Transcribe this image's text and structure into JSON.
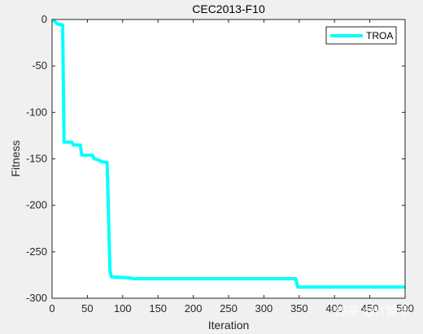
{
  "chart_data": {
    "type": "line",
    "title": "CEC2013-F10",
    "xlabel": "Iteration",
    "ylabel": "Fitness",
    "xlim": [
      0,
      500
    ],
    "ylim": [
      -300,
      0
    ],
    "xticks": [
      0,
      50,
      100,
      150,
      200,
      250,
      300,
      350,
      400,
      450,
      500
    ],
    "yticks": [
      0,
      -50,
      -100,
      -150,
      -200,
      -250,
      -300
    ],
    "grid": false,
    "legend_position": "top-right",
    "series": [
      {
        "name": "TROA",
        "color": "#00ffff",
        "x": [
          1,
          5,
          8,
          15,
          17,
          28,
          30,
          40,
          42,
          57,
          60,
          65,
          70,
          78,
          82,
          84,
          110,
          115,
          345,
          348,
          500
        ],
        "y": [
          0,
          -3,
          -5,
          -6,
          -132,
          -132,
          -135,
          -135,
          -146,
          -146,
          -150,
          -151,
          -153,
          -154,
          -270,
          -277,
          -278,
          -279,
          -279,
          -288,
          -288
        ]
      }
    ]
  },
  "watermark": "知乎 @IT猿手"
}
